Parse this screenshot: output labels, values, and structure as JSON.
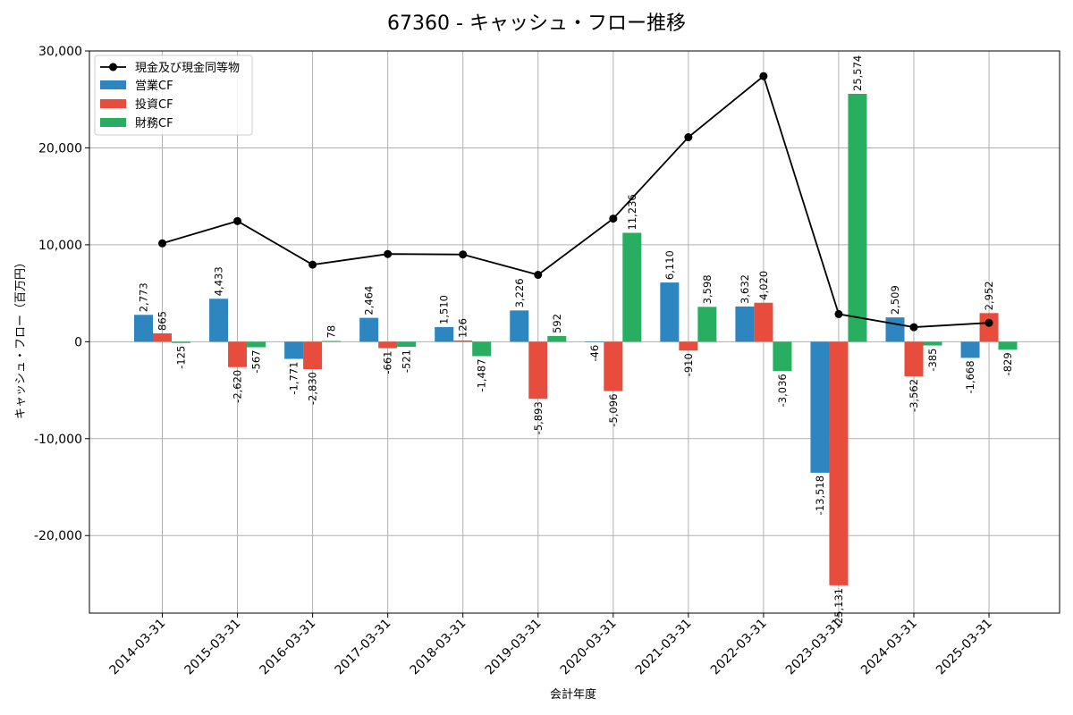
{
  "chart_data": {
    "type": "bar",
    "title": "67360 - キャッシュ・フロー推移",
    "xlabel": "会計年度",
    "ylabel": "キャッシュ・フロー（百万円）",
    "ylim": [
      -28000,
      30000
    ],
    "yticks": [
      -20000,
      -10000,
      0,
      10000,
      20000,
      30000
    ],
    "ytick_labels": [
      "-20,000",
      "-10,000",
      "0",
      "10,000",
      "20,000",
      "30,000"
    ],
    "grid": true,
    "legend_position": "top-left",
    "categories": [
      "2014-03-31",
      "2015-03-31",
      "2016-03-31",
      "2017-03-31",
      "2018-03-31",
      "2019-03-31",
      "2020-03-31",
      "2021-03-31",
      "2022-03-31",
      "2023-03-31",
      "2024-03-31",
      "2025-03-31"
    ],
    "series": [
      {
        "name": "営業CF",
        "kind": "bar",
        "color": "#2e86c1",
        "values": [
          2773,
          4433,
          -1771,
          2464,
          1510,
          3226,
          -46,
          6110,
          3632,
          -13518,
          2509,
          -1668
        ],
        "labels": [
          "2,773",
          "4,433",
          "-1,771",
          "2,464",
          "1,510",
          "3,226",
          "-46",
          "6,110",
          "3,632",
          "-13,518",
          "2,509",
          "-1,668"
        ]
      },
      {
        "name": "投資CF",
        "kind": "bar",
        "color": "#e74c3c",
        "values": [
          865,
          -2620,
          -2830,
          -661,
          126,
          -5893,
          -5096,
          -910,
          4020,
          -25131,
          -3562,
          2952
        ],
        "labels": [
          "865",
          "-2,620",
          "-2,830",
          "-661",
          "126",
          "-5,893",
          "-5,096",
          "-910",
          "4,020",
          "-25,131",
          "-3,562",
          "2,952"
        ]
      },
      {
        "name": "財務CF",
        "kind": "bar",
        "color": "#27ae60",
        "values": [
          -125,
          -567,
          78,
          -521,
          -1487,
          592,
          11236,
          3598,
          -3036,
          25574,
          -385,
          -829
        ],
        "labels": [
          "-125",
          "-567",
          "78",
          "-521",
          "-1,487",
          "592",
          "11,236",
          "3,598",
          "-3,036",
          "25,574",
          "-385",
          "-829"
        ]
      },
      {
        "name": "現金及び現金同等物",
        "kind": "line",
        "color": "#000000",
        "values": [
          10150,
          12450,
          7950,
          9050,
          9000,
          6900,
          12700,
          21100,
          27400,
          2850,
          1500,
          1950
        ]
      }
    ]
  }
}
